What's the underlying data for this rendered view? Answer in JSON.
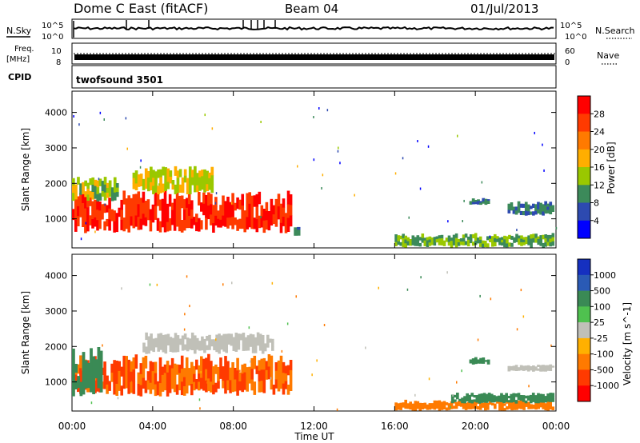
{
  "header": {
    "station": "Dome C East (fitACF)",
    "beam": "Beam 04",
    "date": "01/Jul/2013"
  },
  "top_panels": {
    "nsky_label": "N.Sky",
    "nsky_ticks": [
      "10^5",
      "10^0"
    ],
    "nsearch_label": "N.Search",
    "nsearch_ticks": [
      "10^5",
      "10^0"
    ],
    "freq_label_1": "Freq.",
    "freq_label_2": "[MHz]",
    "freq_ticks": [
      "10",
      "8"
    ],
    "nave_label": "Nave",
    "nave_ticks": [
      "60",
      "0"
    ],
    "cpid_label": "CPID",
    "cpid_value": "twofsound 3501"
  },
  "chart_data": [
    {
      "type": "heatmap",
      "name": "power",
      "ylabel": "Slant Range [km]",
      "xlabel": "",
      "ylim": [
        180,
        4600
      ],
      "yticks": [
        1000,
        2000,
        3000,
        4000
      ],
      "colorbar_label": "Power [dB]",
      "colorbar_ticks": [
        "28",
        "24",
        "20",
        "16",
        "12",
        "8",
        "4"
      ],
      "colorbar_colors": [
        "#ff0000",
        "#ff3a00",
        "#ff7a00",
        "#ffae00",
        "#9ac800",
        "#3c8a5a",
        "#2d4ab0",
        "#0000ff"
      ],
      "bands": [
        {
          "t0": 0.0,
          "t1": 10.9,
          "r0": 600,
          "r1": 1800,
          "level": 26
        },
        {
          "t0": 0.0,
          "t1": 2.3,
          "r0": 1500,
          "r1": 2200,
          "level": 12
        },
        {
          "t0": 3.0,
          "t1": 7.0,
          "r0": 1700,
          "r1": 2500,
          "level": 14
        },
        {
          "t0": 11.0,
          "t1": 11.3,
          "r0": 500,
          "r1": 800,
          "level": 6
        },
        {
          "t0": 16.0,
          "t1": 23.9,
          "r0": 200,
          "r1": 600,
          "level": 10
        },
        {
          "t0": 19.7,
          "t1": 20.7,
          "r0": 1400,
          "r1": 1600,
          "level": 6
        },
        {
          "t0": 21.6,
          "t1": 23.9,
          "r0": 1100,
          "r1": 1500,
          "level": 6
        }
      ]
    },
    {
      "type": "heatmap",
      "name": "velocity",
      "ylabel": "Slant Range [km]",
      "xlabel": "Time UT",
      "ylim": [
        180,
        4600
      ],
      "yticks": [
        1000,
        2000,
        3000,
        4000
      ],
      "xticks": [
        "00:00",
        "04:00",
        "08:00",
        "12:00",
        "16:00",
        "20:00",
        "00:00"
      ],
      "xlim": [
        0,
        24
      ],
      "colorbar_label": "Velocity [m s^-1]",
      "colorbar_ticks": [
        "1000",
        "500",
        "100",
        "25",
        "-25",
        "-100",
        "-500",
        "-1000"
      ],
      "colorbar_colors": [
        "#1530c0",
        "#2a5ab5",
        "#3a8a55",
        "#4fc14f",
        "#c0c0b8",
        "#ffb000",
        "#ff7a00",
        "#ff3a00",
        "#ff0000"
      ],
      "bands": [
        {
          "t0": 0.0,
          "t1": 10.9,
          "r0": 600,
          "r1": 1800,
          "level": -300
        },
        {
          "t0": 0.0,
          "t1": 1.5,
          "r0": 600,
          "r1": 2000,
          "level": 200
        },
        {
          "t0": 3.5,
          "t1": 10.0,
          "r0": 1800,
          "r1": 2400,
          "level": 0
        },
        {
          "t0": 16.0,
          "t1": 23.9,
          "r0": 200,
          "r1": 500,
          "level": -150
        },
        {
          "t0": 18.8,
          "t1": 23.9,
          "r0": 400,
          "r1": 700,
          "level": 150
        },
        {
          "t0": 19.7,
          "t1": 20.7,
          "r0": 1500,
          "r1": 1700,
          "level": 100
        },
        {
          "t0": 21.6,
          "t1": 23.9,
          "r0": 1300,
          "r1": 1500,
          "level": 0
        }
      ]
    }
  ]
}
